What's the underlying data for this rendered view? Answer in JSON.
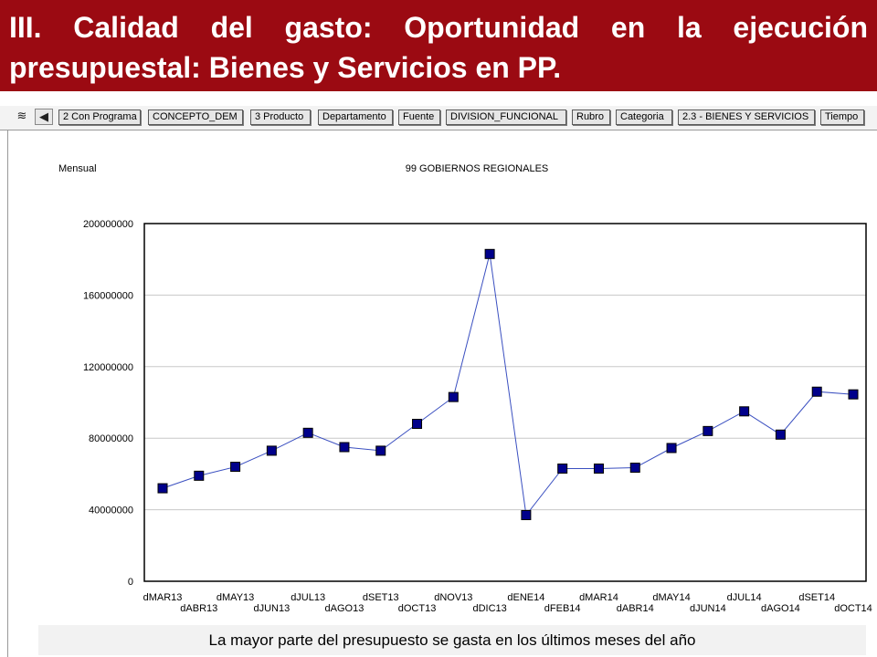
{
  "slide": {
    "title": "III. Calidad del gasto: Oportunidad en la ejecución presupuestal: Bienes y Servicios en PP.",
    "caption": "La mayor parte del presupuesto se gasta en los últimos meses del año",
    "banner_color": "#9b0a12"
  },
  "toolbar": {
    "icons": [
      "stack-icon",
      "back-arrow-icon"
    ],
    "tabs": [
      "2 Con Programa",
      "CONCEPTO_DEM",
      "3 Producto",
      "Departamento",
      "Fuente",
      "DIVISION_FUNCIONAL",
      "Rubro",
      "Categoria",
      "2.3 - BIENES Y SERVICIOS",
      "Tiempo"
    ]
  },
  "chart_data": {
    "type": "line",
    "title": "99 GOBIERNOS REGIONALES",
    "ylabel": "Mensual",
    "xlabel": "",
    "ylim": [
      0,
      200000000
    ],
    "yticks": [
      0,
      40000000,
      80000000,
      120000000,
      160000000,
      200000000
    ],
    "grid": true,
    "legend": "none",
    "line_color": "#3a4fc0",
    "marker_color": "#00008b",
    "categories": [
      "dMAR13",
      "dABR13",
      "dMAY13",
      "dJUN13",
      "dJUL13",
      "dAGO13",
      "dSET13",
      "dOCT13",
      "dNOV13",
      "dDIC13",
      "dENE14",
      "dFEB14",
      "dMAR14",
      "dABR14",
      "dMAY14",
      "dJUN14",
      "dJUL14",
      "dAGO14",
      "dSET14",
      "dOCT14"
    ],
    "series": [
      {
        "values": [
          52000000,
          59000000,
          64000000,
          73000000,
          83000000,
          75000000,
          73000000,
          88000000,
          103000000,
          183000000,
          37000000,
          63000000,
          63000000,
          63500000,
          74500000,
          84000000,
          95000000,
          82000000,
          106000000,
          104500000
        ]
      }
    ]
  }
}
